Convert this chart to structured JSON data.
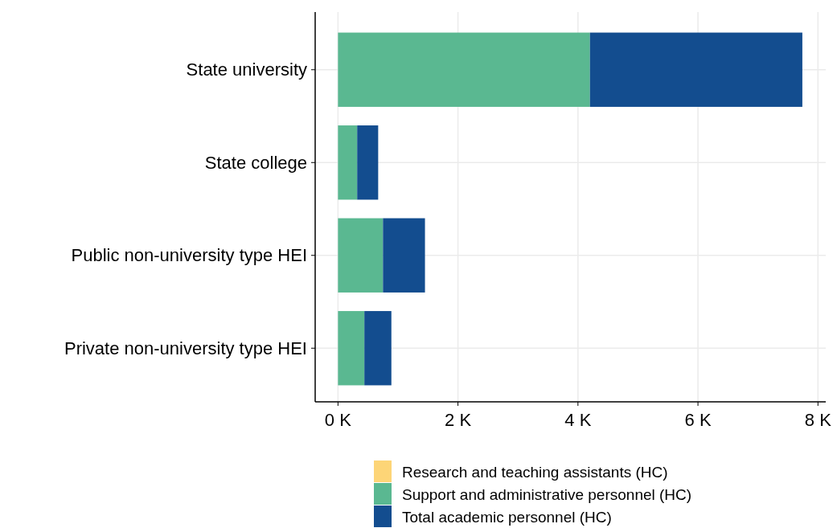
{
  "chart_data": {
    "type": "bar",
    "orientation": "horizontal",
    "stacked": true,
    "categories": [
      "State university",
      "State college",
      "Public non-university type HEI",
      "Private non-university type HEI"
    ],
    "series": [
      {
        "name": "Research and teaching assistants (HC)",
        "color": "#fdd577",
        "values": [
          0,
          0,
          0,
          0
        ]
      },
      {
        "name": "Support and administrative personnel (HC)",
        "color": "#5ab891",
        "values": [
          4200,
          320,
          750,
          440
        ]
      },
      {
        "name": "Total academic personnel (HC)",
        "color": "#134d8f",
        "values": [
          3540,
          350,
          700,
          450
        ]
      }
    ],
    "xlim": [
      -380,
      8130
    ],
    "xticks": [
      {
        "value": 0,
        "label": "0 K"
      },
      {
        "value": 2000,
        "label": "2 K"
      },
      {
        "value": 4000,
        "label": "4 K"
      },
      {
        "value": 6000,
        "label": "6 K"
      },
      {
        "value": 8000,
        "label": "8 K"
      }
    ],
    "grid": true,
    "legend": "bottom"
  }
}
